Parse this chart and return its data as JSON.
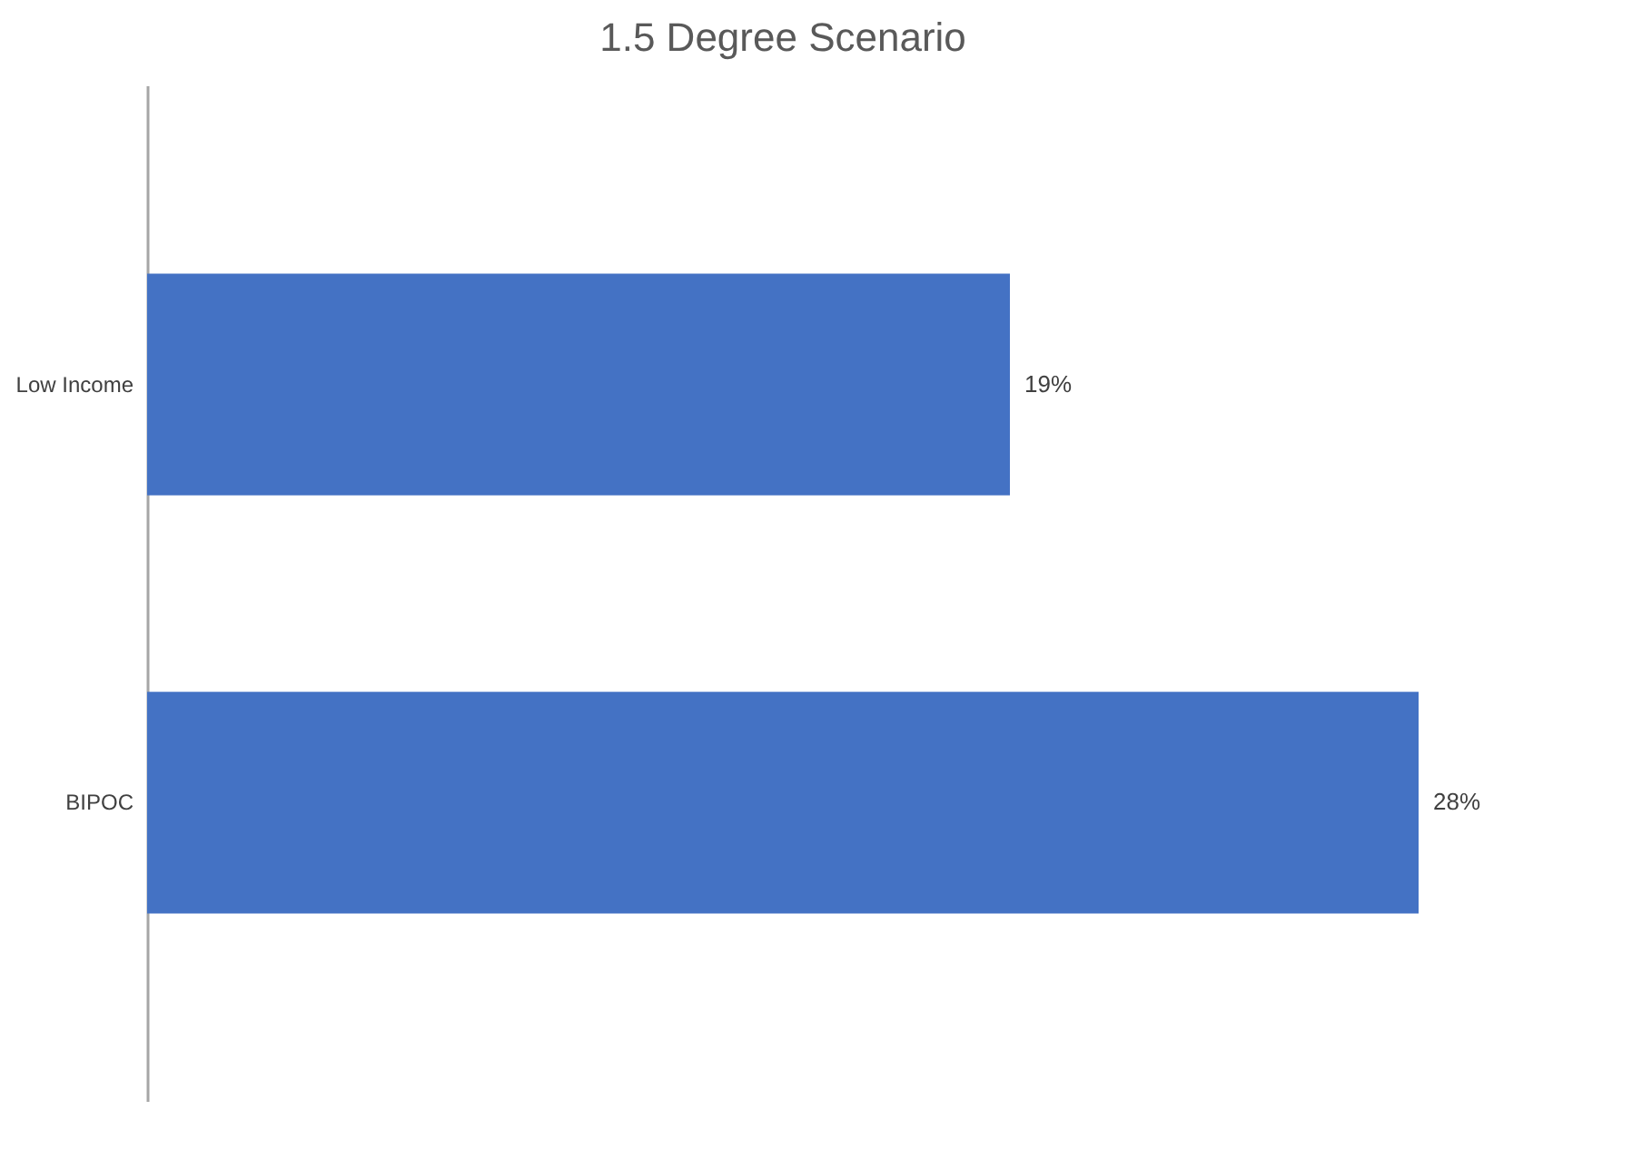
{
  "chart_data": {
    "type": "bar",
    "title": "1.5 Degree Scenario",
    "orientation": "horizontal",
    "categories": [
      "Low Income",
      "BIPOC"
    ],
    "values": [
      19,
      28
    ],
    "value_labels": [
      "19%",
      "28%"
    ],
    "color": "#4472c4",
    "grid": false
  }
}
